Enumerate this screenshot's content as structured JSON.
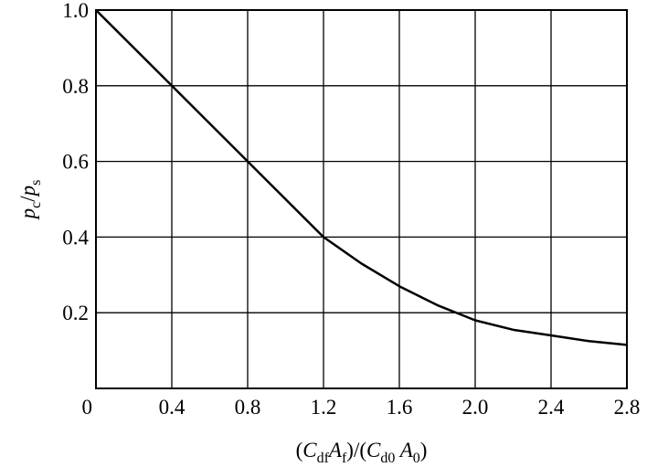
{
  "chart_data": {
    "type": "line",
    "xlabel": [
      {
        "text": "("
      },
      {
        "text": "C",
        "italic": true
      },
      {
        "text": "df",
        "sub": true
      },
      {
        "text": "A",
        "italic": true
      },
      {
        "text": "f",
        "sub": true
      },
      {
        "text": ")/("
      },
      {
        "text": "C",
        "italic": true
      },
      {
        "text": "d0",
        "sub": true
      },
      {
        "text": " A",
        "italic": true
      },
      {
        "text": "0",
        "sub": true
      },
      {
        "text": ")"
      }
    ],
    "ylabel": [
      {
        "text": "p",
        "italic": true
      },
      {
        "text": "c",
        "sub": true
      },
      {
        "text": "/"
      },
      {
        "text": "p",
        "italic": true
      },
      {
        "text": "s",
        "sub": true
      }
    ],
    "x": [
      0,
      0.4,
      0.8,
      1.2,
      1.4,
      1.6,
      1.8,
      2.0,
      2.2,
      2.4,
      2.6,
      2.8
    ],
    "values": [
      1.0,
      0.8,
      0.6,
      0.4,
      0.33,
      0.27,
      0.22,
      0.18,
      0.155,
      0.14,
      0.125,
      0.115
    ],
    "color": "#000000",
    "xlim": [
      0,
      2.8
    ],
    "xticks": [
      0,
      0.4,
      0.8,
      1.2,
      1.6,
      {
        "value": 2,
        "label": "2.0"
      },
      2.4,
      2.8
    ],
    "ylim": [
      0,
      1
    ],
    "yticks": [
      0.2,
      0.4,
      0.6,
      0.8,
      {
        "value": 1,
        "label": "1.0"
      }
    ],
    "grid": true
  }
}
